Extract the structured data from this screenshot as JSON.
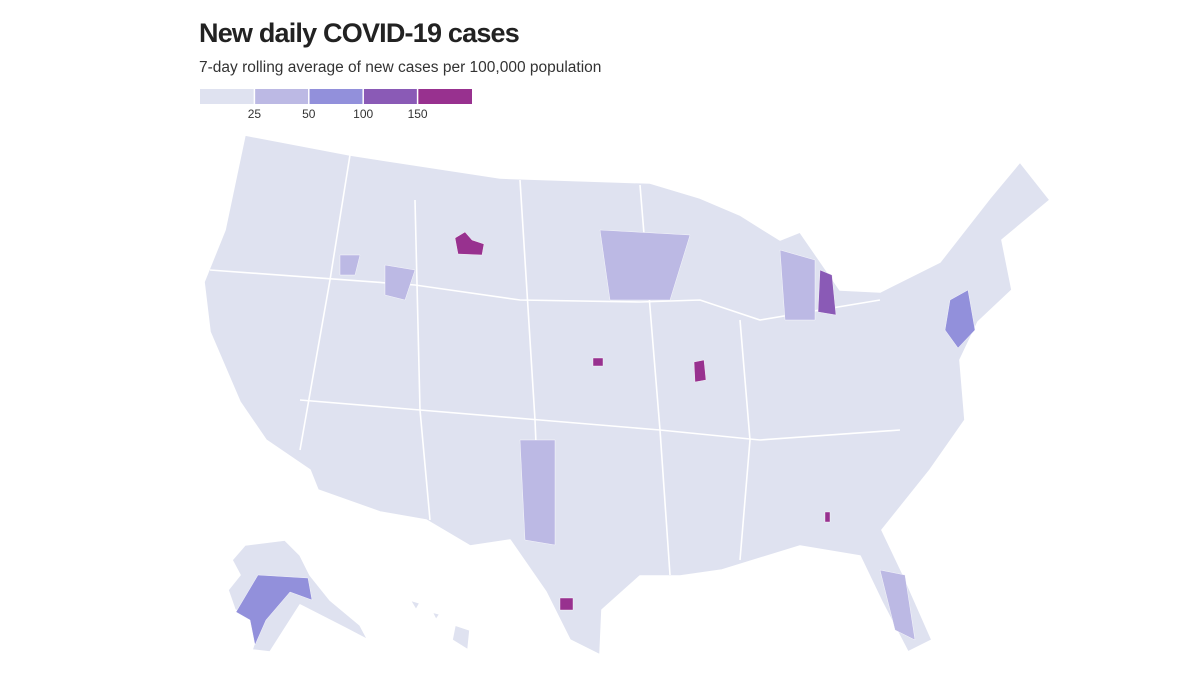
{
  "chart_data": {
    "type": "choropleth",
    "title": "New daily COVID-19 cases",
    "subtitle": "7-day rolling average of new cases per 100,000 population",
    "legend": {
      "breaks": [
        25,
        50,
        100,
        150
      ],
      "colors": [
        "#dfe2f0",
        "#bcb9e4",
        "#9290db",
        "#8a5ab6",
        "#98318f"
      ]
    }
  }
}
